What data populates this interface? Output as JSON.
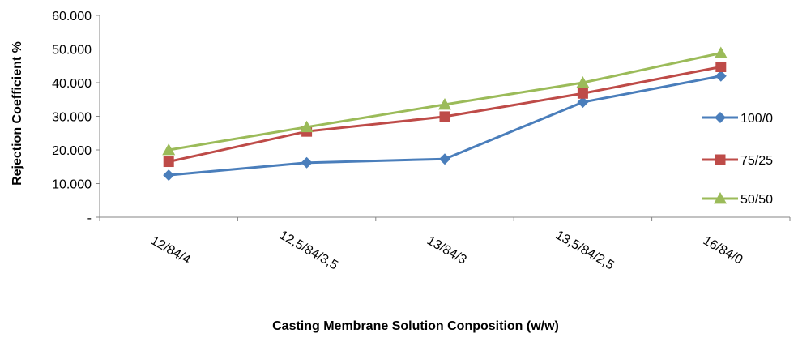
{
  "chart_data": {
    "type": "line",
    "title": "",
    "xlabel": "Casting Membrane Solution Conposition (w/w)",
    "ylabel": "Rejection Coefficient %",
    "categories": [
      "12/84/4",
      "12,5/84/3,5",
      "13/84/3",
      "13,5/84/2,5",
      "16/84/0"
    ],
    "ylim": [
      0,
      60
    ],
    "yticks": [
      0,
      10,
      20,
      30,
      40,
      50,
      60
    ],
    "ytick_labels": [
      "-",
      "10.000",
      "20.000",
      "30.000",
      "40.000",
      "50.000",
      "60.000"
    ],
    "grid": false,
    "legend_position": "right",
    "series": [
      {
        "name": "100/0",
        "values": [
          12.5,
          16.2,
          17.3,
          34.2,
          42.0
        ],
        "color": "#4a7ebb",
        "marker": "diamond"
      },
      {
        "name": "75/25",
        "values": [
          16.5,
          25.5,
          29.9,
          36.8,
          44.7
        ],
        "color": "#be4b48",
        "marker": "square"
      },
      {
        "name": "50/50",
        "values": [
          20.0,
          26.8,
          33.5,
          40.0,
          48.8
        ],
        "color": "#9bbb59",
        "marker": "triangle"
      }
    ]
  }
}
